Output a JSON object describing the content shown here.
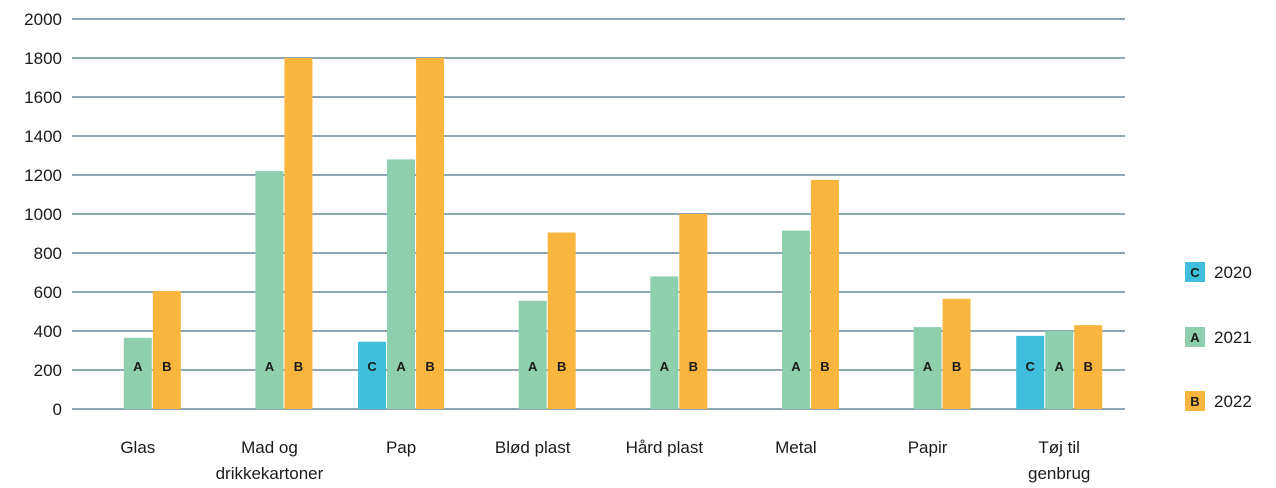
{
  "chart_data": {
    "type": "bar",
    "title": "",
    "xlabel": "",
    "ylabel": "",
    "ylim": [
      0,
      2000
    ],
    "yticks": [
      "0",
      "200",
      "400",
      "600",
      "800",
      "1000",
      "1200",
      "1400",
      "1600",
      "1800",
      "2000"
    ],
    "grid": true,
    "legend_position": "right",
    "categories": [
      [
        "Glas"
      ],
      [
        "Mad og",
        "drikkekartoner"
      ],
      [
        "Pap"
      ],
      [
        "Blød plast"
      ],
      [
        "Hård plast"
      ],
      [
        "Metal"
      ],
      [
        "Papir"
      ],
      [
        "Tøj til",
        "genbrug"
      ]
    ],
    "series": [
      {
        "name": "2020",
        "code": "C",
        "color": "#3fbfdc",
        "values": [
          null,
          null,
          345,
          null,
          null,
          null,
          null,
          375
        ]
      },
      {
        "name": "2021",
        "code": "A",
        "color": "#8ecfae",
        "values": [
          365,
          1220,
          1280,
          555,
          680,
          915,
          420,
          400
        ]
      },
      {
        "name": "2022",
        "code": "B",
        "color": "#f9b53d",
        "values": [
          605,
          1800,
          1800,
          905,
          1000,
          1175,
          565,
          430
        ]
      }
    ],
    "legend_order": [
      0,
      1,
      2
    ]
  }
}
